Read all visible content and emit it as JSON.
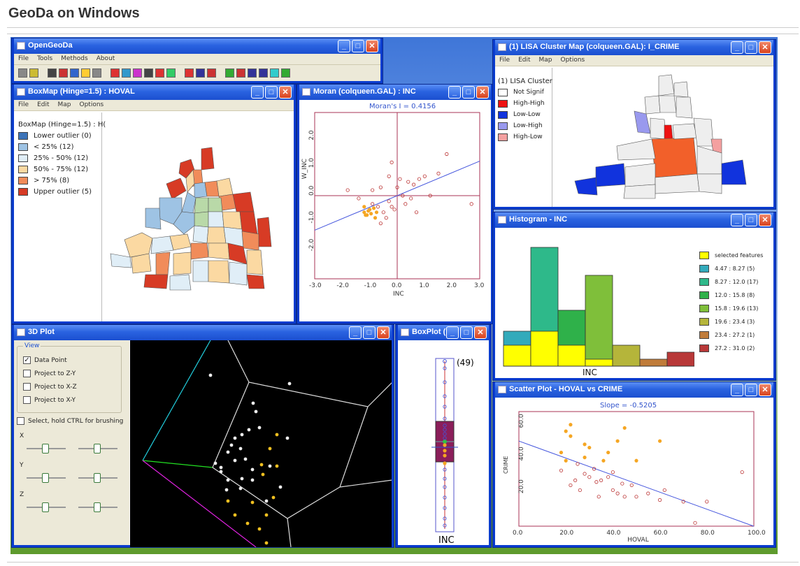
{
  "page": {
    "heading": "GeoDa on Windows"
  },
  "main_window": {
    "title": "OpenGeoDa",
    "menu": [
      "File",
      "Tools",
      "Methods",
      "About"
    ]
  },
  "boxmap": {
    "title": "BoxMap (Hinge=1.5) : HOVAL",
    "menu": [
      "File",
      "Edit",
      "Map",
      "Options"
    ],
    "legend_title": "BoxMap (Hinge=1.5) : H(",
    "legend": [
      {
        "label": "Lower outlier (0)",
        "color": "#3d74b8"
      },
      {
        "label": "< 25% (12)",
        "color": "#9ec3e4"
      },
      {
        "label": "25% - 50% (12)",
        "color": "#e0eef7"
      },
      {
        "label": "50% - 75% (12)",
        "color": "#fbd9a2"
      },
      {
        "label": "> 75% (8)",
        "color": "#f18c5a"
      },
      {
        "label": "Upper outlier (5)",
        "color": "#d73b25"
      }
    ]
  },
  "moran": {
    "title": "Moran (colqueen.GAL) : INC",
    "stat": "Moran's I = 0.4156",
    "ylabel": "W_INC",
    "xlabel": "INC",
    "xticks": [
      "-3.0",
      "-2.0",
      "-1.0",
      "0.0",
      "1.0",
      "2.0",
      "3.0"
    ],
    "yticks": [
      "2.0",
      "1.0",
      "0.0",
      "-1.0",
      "-2.0"
    ]
  },
  "lisa": {
    "title": "(1) LISA Cluster Map (colqueen.GAL): I_CRIME",
    "menu": [
      "File",
      "Edit",
      "Map",
      "Options"
    ],
    "legend_title": "(1) LISA Cluster",
    "legend": [
      {
        "label": "Not Signif",
        "color": "#ffffff"
      },
      {
        "label": "High-High",
        "color": "#ee1111"
      },
      {
        "label": "Low-Low",
        "color": "#1133dd"
      },
      {
        "label": "Low-High",
        "color": "#9999ee"
      },
      {
        "label": "High-Low",
        "color": "#f4a0a0"
      }
    ]
  },
  "histogram": {
    "title": "Histogram - INC",
    "xlabel": "INC",
    "legend": [
      {
        "label": "selected features",
        "color": "#ffff00"
      },
      {
        "label": "4.47 : 8.27 (5)",
        "color": "#33aabb"
      },
      {
        "label": "8.27 : 12.0 (17)",
        "color": "#2eb98a"
      },
      {
        "label": "12.0 : 15.8 (8)",
        "color": "#2fb14a"
      },
      {
        "label": "15.8 : 19.6 (13)",
        "color": "#7fbf3a"
      },
      {
        "label": "19.6 : 23.4 (3)",
        "color": "#b5b53a"
      },
      {
        "label": "23.4 : 27.2 (1)",
        "color": "#c07c3a"
      },
      {
        "label": "27.2 : 31.0 (2)",
        "color": "#b83838"
      }
    ]
  },
  "plot3d": {
    "title": "3D Plot",
    "group": "View",
    "options": [
      {
        "label": "Data Point",
        "checked": true
      },
      {
        "label": "Project to Z-Y",
        "checked": false
      },
      {
        "label": "Project to X-Z",
        "checked": false
      },
      {
        "label": "Project to X-Y",
        "checked": false
      }
    ],
    "brush": "Select, hold CTRL for brushing",
    "axes": [
      "X",
      "Y",
      "Z"
    ]
  },
  "boxplot": {
    "title": "BoxPlot (...",
    "outlier": "(49)",
    "xlabel": "INC"
  },
  "scatter": {
    "title": "Scatter Plot - HOVAL vs CRIME",
    "stat": "Slope = -0.5205",
    "xlabel": "HOVAL",
    "ylabel": "CRIME",
    "xticks": [
      "0.0",
      "20.0",
      "40.0",
      "60.0",
      "80.0",
      "100.0"
    ],
    "yticks": [
      "60.0",
      "40.0",
      "20.0"
    ]
  },
  "chart_data": [
    {
      "type": "scatter",
      "title": "Moran's I = 0.4156",
      "xlabel": "INC",
      "ylabel": "W_INC",
      "xlim": [
        -3,
        3
      ],
      "ylim": [
        -3,
        3
      ],
      "series": [
        {
          "name": "",
          "points": [
            [
              -1.8,
              0.2
            ],
            [
              -1.2,
              -0.6
            ],
            [
              -1.1,
              -0.7
            ],
            [
              -1.0,
              -0.5
            ],
            [
              -0.9,
              -0.3
            ],
            [
              -0.8,
              -0.8
            ],
            [
              -0.7,
              -0.4
            ],
            [
              -0.6,
              -1.0
            ],
            [
              -0.5,
              -0.6
            ],
            [
              -0.4,
              -0.8
            ],
            [
              -0.3,
              -0.2
            ],
            [
              -0.2,
              -0.4
            ],
            [
              -0.1,
              -0.5
            ],
            [
              0.0,
              0.3
            ],
            [
              0.2,
              0.0
            ],
            [
              0.4,
              0.5
            ],
            [
              0.6,
              0.4
            ],
            [
              0.8,
              0.6
            ],
            [
              1.0,
              0.7
            ],
            [
              1.2,
              0.0
            ],
            [
              -0.6,
              0.3
            ],
            [
              -0.9,
              0.2
            ],
            [
              -0.3,
              0.7
            ],
            [
              0.1,
              0.6
            ],
            [
              1.5,
              0.8
            ],
            [
              1.8,
              1.5
            ],
            [
              2.7,
              -0.3
            ],
            [
              -1.2,
              -0.4
            ],
            [
              -1.05,
              -0.55
            ],
            [
              -0.95,
              -0.65
            ],
            [
              -0.85,
              -0.45
            ],
            [
              -1.15,
              -0.7
            ],
            [
              -0.75,
              -0.6
            ],
            [
              0.3,
              -0.3
            ],
            [
              0.7,
              -0.6
            ],
            [
              -1.4,
              -0.1
            ],
            [
              -0.2,
              1.2
            ],
            [
              0.5,
              -0.1
            ]
          ]
        }
      ]
    },
    {
      "type": "bar",
      "title": "",
      "xlabel": "INC",
      "categories": [
        "4.47 : 8.27",
        "8.27 : 12.0",
        "12.0 : 15.8",
        "15.8 : 19.6",
        "19.6 : 23.4",
        "23.4 : 27.2",
        "27.2 : 31.0"
      ],
      "series": [
        {
          "name": "",
          "values": [
            5,
            17,
            8,
            13,
            3,
            1,
            2
          ]
        },
        {
          "name": "selected features",
          "values": [
            3,
            5,
            3,
            1,
            0,
            0,
            0
          ]
        }
      ],
      "ylim": [
        0,
        18
      ]
    },
    {
      "type": "scatter",
      "title": "Slope = -0.5205",
      "xlabel": "HOVAL",
      "ylabel": "CRIME",
      "xlim": [
        0,
        100
      ],
      "ylim": [
        0,
        70
      ],
      "series": [
        {
          "name": "",
          "points": [
            [
              20,
              58
            ],
            [
              22,
              55
            ],
            [
              18,
              45
            ],
            [
              25,
              38
            ],
            [
              28,
              32
            ],
            [
              30,
              30
            ],
            [
              22,
              25
            ],
            [
              35,
              28
            ],
            [
              40,
              22
            ],
            [
              42,
              20
            ],
            [
              45,
              18
            ],
            [
              50,
              18
            ],
            [
              55,
              20
            ],
            [
              38,
              30
            ],
            [
              28,
              42
            ],
            [
              32,
              35
            ],
            [
              36,
              40
            ],
            [
              40,
              33
            ],
            [
              48,
              25
            ],
            [
              60,
              16
            ],
            [
              70,
              15
            ],
            [
              75,
              2
            ],
            [
              80,
              15
            ],
            [
              95,
              33
            ],
            [
              26,
              22
            ],
            [
              24,
              28
            ],
            [
              34,
              18
            ],
            [
              44,
              26
            ],
            [
              30,
              48
            ],
            [
              38,
              45
            ],
            [
              50,
              40
            ],
            [
              22,
              62
            ],
            [
              45,
              60
            ],
            [
              60,
              52
            ],
            [
              28,
              50
            ],
            [
              42,
              52
            ],
            [
              33,
              27
            ],
            [
              20,
              40
            ],
            [
              62,
              22
            ],
            [
              18,
              34
            ]
          ]
        }
      ]
    }
  ]
}
